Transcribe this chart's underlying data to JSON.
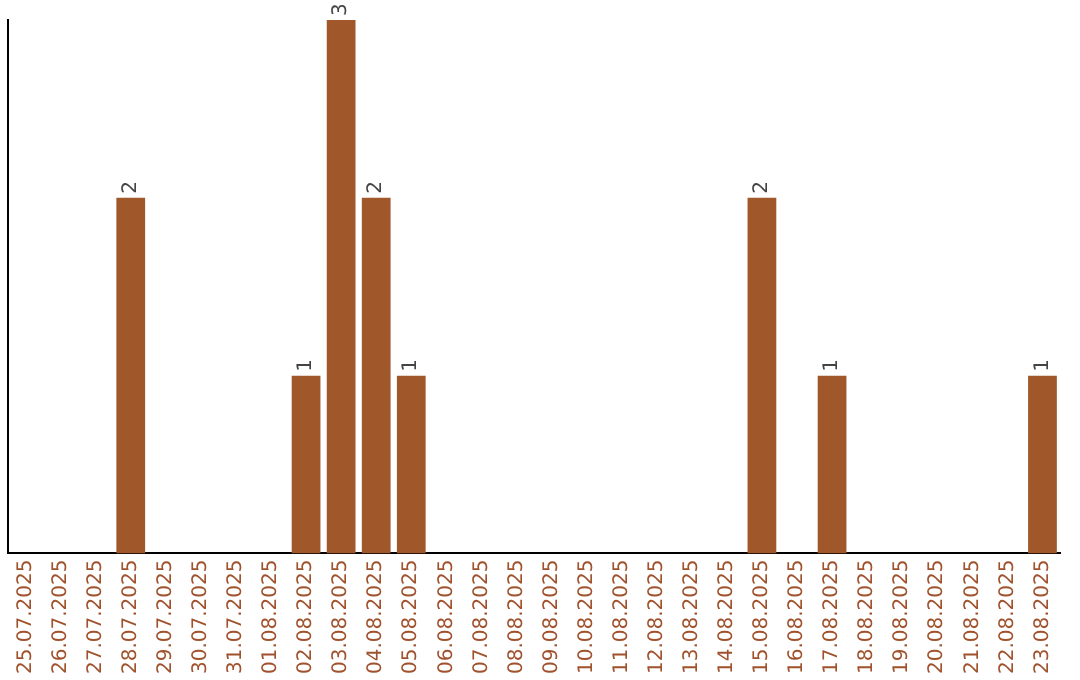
{
  "chart_data": {
    "type": "bar",
    "categories": [
      "25.07.2025",
      "26.07.2025",
      "27.07.2025",
      "28.07.2025",
      "29.07.2025",
      "30.07.2025",
      "31.07.2025",
      "01.08.2025",
      "02.08.2025",
      "03.08.2025",
      "04.08.2025",
      "05.08.2025",
      "06.08.2025",
      "07.08.2025",
      "08.08.2025",
      "09.08.2025",
      "10.08.2025",
      "11.08.2025",
      "12.08.2025",
      "13.08.2025",
      "14.08.2025",
      "15.08.2025",
      "16.08.2025",
      "17.08.2025",
      "18.08.2025",
      "19.08.2025",
      "20.08.2025",
      "21.08.2025",
      "22.08.2025",
      "23.08.2025"
    ],
    "values": [
      0,
      0,
      0,
      2,
      0,
      0,
      0,
      0,
      1,
      3,
      2,
      1,
      0,
      0,
      0,
      0,
      0,
      0,
      0,
      0,
      0,
      2,
      0,
      1,
      0,
      0,
      0,
      0,
      0,
      1
    ],
    "value_labels": [
      null,
      null,
      null,
      "2",
      null,
      null,
      null,
      null,
      "1",
      "3",
      "2",
      "1",
      null,
      null,
      null,
      null,
      null,
      null,
      null,
      null,
      null,
      "2",
      null,
      "1",
      null,
      null,
      null,
      null,
      null,
      "1"
    ],
    "color": "#a0572a",
    "tick_labels": "x"
  }
}
